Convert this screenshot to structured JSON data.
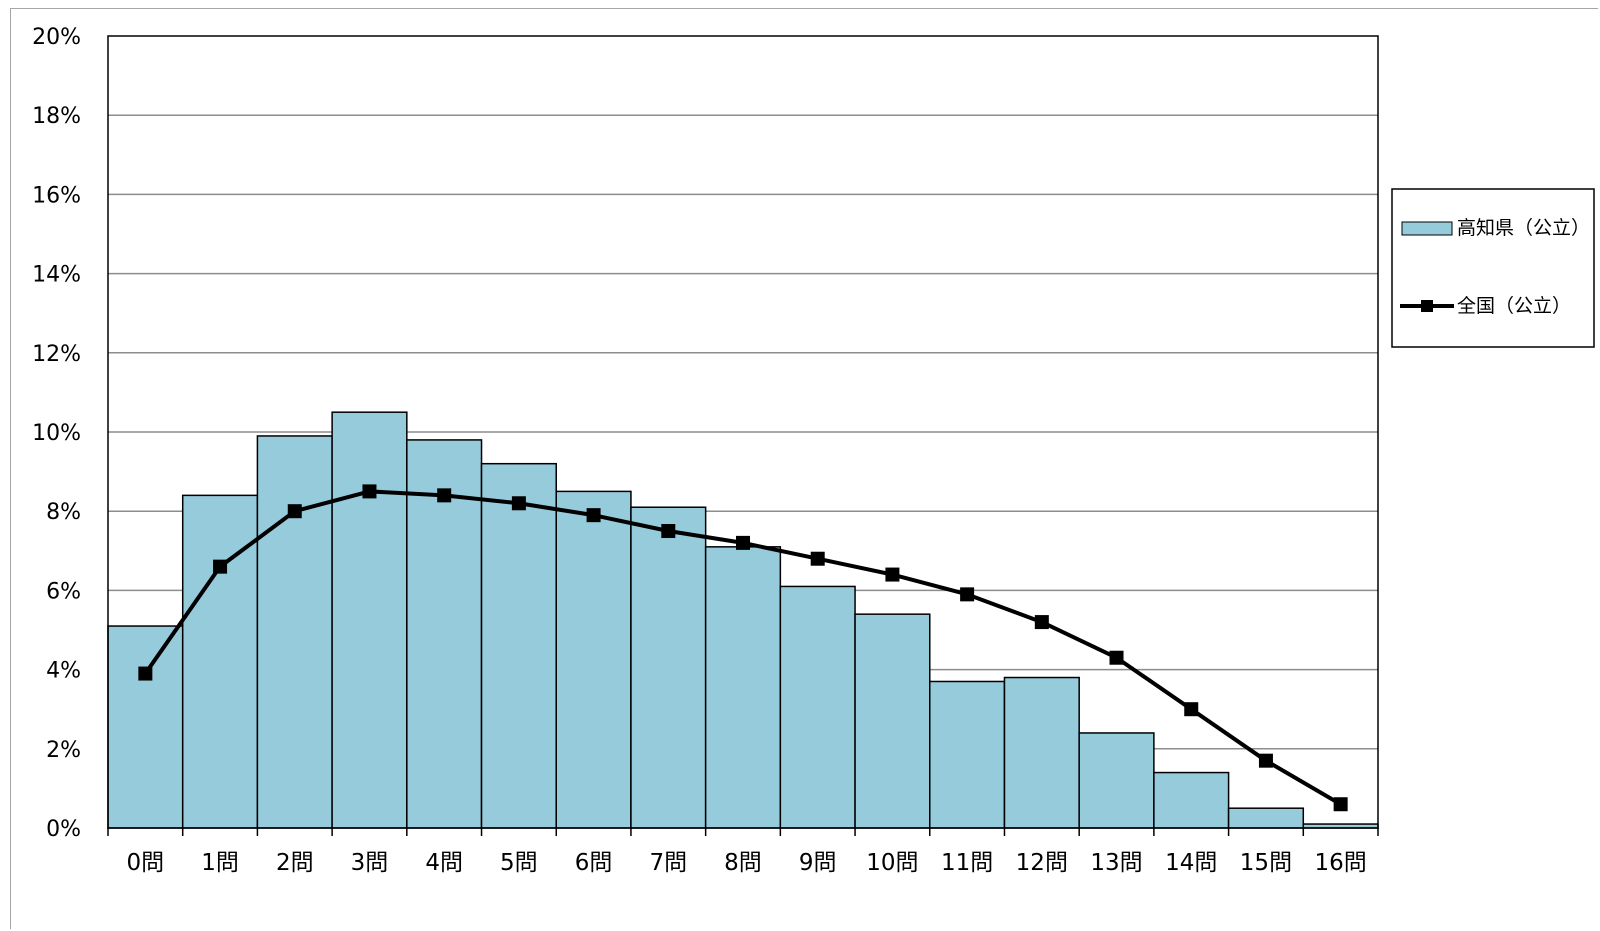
{
  "chart_data": {
    "type": "bar",
    "categories": [
      "0問",
      "1問",
      "2問",
      "3問",
      "4問",
      "5問",
      "6問",
      "7問",
      "8問",
      "9問",
      "10問",
      "11問",
      "12問",
      "13問",
      "14問",
      "15問",
      "16問"
    ],
    "series": [
      {
        "name": "高知県（公立）",
        "kind": "bar",
        "color": "#96cbdc",
        "values": [
          5.1,
          8.4,
          9.9,
          10.5,
          9.8,
          9.2,
          8.5,
          8.1,
          7.1,
          6.1,
          5.4,
          3.7,
          3.8,
          2.4,
          1.4,
          0.5,
          0.1
        ]
      },
      {
        "name": "全国（公立）",
        "kind": "line",
        "color": "#000000",
        "values": [
          3.9,
          6.6,
          8.0,
          8.5,
          8.4,
          8.2,
          7.9,
          7.5,
          7.2,
          6.8,
          6.4,
          5.9,
          5.2,
          4.3,
          3.0,
          1.7,
          0.6
        ]
      }
    ],
    "yticks": [
      "0%",
      "2%",
      "4%",
      "6%",
      "8%",
      "10%",
      "12%",
      "14%",
      "16%",
      "18%",
      "20%"
    ],
    "ylim": [
      0,
      20
    ],
    "grid": true,
    "legend_position": "right"
  }
}
